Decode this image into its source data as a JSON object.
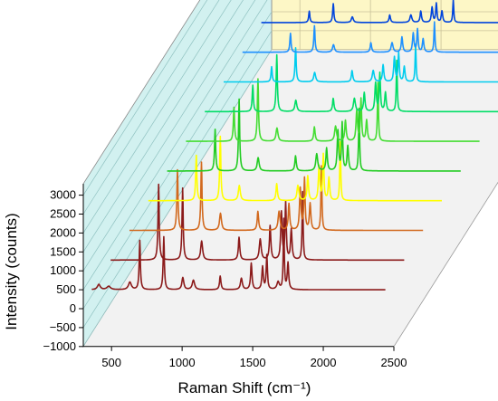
{
  "chart_data": {
    "type": "line",
    "subtype": "waterfall-3d",
    "xlabel": "Raman Shift (cm⁻¹)",
    "ylabel": "Intensity (counts)",
    "xlim": [
      300,
      2500
    ],
    "ylim": [
      -1000,
      3300
    ],
    "x_ticks": [
      500,
      1000,
      1500,
      2000,
      2500
    ],
    "y_ticks": [
      -1000,
      -500,
      0,
      500,
      1000,
      1500,
      2000,
      2500,
      3000
    ],
    "grid": true,
    "legend": "none",
    "colors": {
      "back_wall": "#fdf7c6",
      "side_wall": "#d2f1f0",
      "floor_face": "#f2f2f2",
      "highlight": "#f8d6f2"
    },
    "series": [
      {
        "color": "#8b1a1a",
        "baseline": 500,
        "peaks": [
          [
            410,
            140,
            12
          ],
          [
            480,
            90,
            15
          ],
          [
            630,
            200,
            12
          ],
          [
            700,
            1300,
            5
          ],
          [
            870,
            1400,
            5
          ],
          [
            1005,
            320,
            8
          ],
          [
            1080,
            250,
            10
          ],
          [
            1270,
            360,
            6
          ],
          [
            1420,
            300,
            8
          ],
          [
            1490,
            700,
            6
          ],
          [
            1570,
            600,
            6
          ],
          [
            1600,
            900,
            5
          ],
          [
            1680,
            200,
            10
          ],
          [
            1720,
            1850,
            4
          ],
          [
            1750,
            700,
            6
          ]
        ]
      },
      {
        "color": "#8b1a1a",
        "baseline": 500,
        "peaks": [
          [
            700,
            2000,
            5
          ],
          [
            870,
            1900,
            5
          ],
          [
            1005,
            500,
            8
          ],
          [
            1270,
            600,
            6
          ],
          [
            1420,
            550,
            8
          ],
          [
            1490,
            900,
            6
          ],
          [
            1570,
            1250,
            6
          ],
          [
            1600,
            1500,
            5
          ],
          [
            1640,
            800,
            6
          ],
          [
            1720,
            1800,
            4
          ]
        ]
      },
      {
        "color": "#d2691e",
        "baseline": 500,
        "peaks": [
          [
            700,
            1600,
            5
          ],
          [
            870,
            1800,
            5
          ],
          [
            1005,
            450,
            8
          ],
          [
            1270,
            500,
            6
          ],
          [
            1420,
            500,
            8
          ],
          [
            1490,
            700,
            6
          ],
          [
            1570,
            1100,
            6
          ],
          [
            1600,
            1350,
            5
          ],
          [
            1640,
            700,
            6
          ],
          [
            1720,
            1700,
            4
          ]
        ]
      },
      {
        "color": "#ffff00",
        "baseline": 500,
        "peaks": [
          [
            700,
            1200,
            5
          ],
          [
            870,
            1700,
            5
          ],
          [
            1005,
            400,
            8
          ],
          [
            1270,
            450,
            6
          ],
          [
            1420,
            400,
            8
          ],
          [
            1490,
            650,
            6
          ],
          [
            1570,
            900,
            6
          ],
          [
            1600,
            1200,
            5
          ],
          [
            1640,
            600,
            6
          ],
          [
            1720,
            1550,
            4
          ]
        ]
      },
      {
        "color": "#22cc22",
        "baseline": 500,
        "peaks": [
          [
            700,
            1100,
            5
          ],
          [
            870,
            1900,
            5
          ],
          [
            1005,
            350,
            8
          ],
          [
            1270,
            400,
            6
          ],
          [
            1420,
            450,
            8
          ],
          [
            1490,
            600,
            6
          ],
          [
            1570,
            1050,
            6
          ],
          [
            1600,
            1250,
            5
          ],
          [
            1640,
            650,
            6
          ],
          [
            1720,
            1650,
            4
          ]
        ]
      },
      {
        "color": "#44dd33",
        "baseline": 500,
        "peaks": [
          [
            700,
            900,
            5
          ],
          [
            870,
            1650,
            5
          ],
          [
            1005,
            350,
            8
          ],
          [
            1270,
            380,
            6
          ],
          [
            1420,
            400,
            8
          ],
          [
            1490,
            550,
            6
          ],
          [
            1570,
            800,
            6
          ],
          [
            1600,
            1100,
            5
          ],
          [
            1640,
            550,
            6
          ],
          [
            1720,
            1550,
            4
          ]
        ]
      },
      {
        "color": "#00dd66",
        "baseline": 500,
        "peaks": [
          [
            700,
            700,
            5
          ],
          [
            870,
            1500,
            5
          ],
          [
            1005,
            300,
            8
          ],
          [
            1270,
            350,
            6
          ],
          [
            1420,
            350,
            8
          ],
          [
            1490,
            500,
            6
          ],
          [
            1570,
            750,
            6
          ],
          [
            1600,
            1000,
            5
          ],
          [
            1640,
            500,
            6
          ],
          [
            1720,
            1350,
            4
          ]
        ]
      },
      {
        "color": "#00ccee",
        "baseline": 500,
        "peaks": [
          [
            700,
            400,
            5
          ],
          [
            870,
            900,
            5
          ],
          [
            1005,
            250,
            8
          ],
          [
            1270,
            300,
            6
          ],
          [
            1420,
            300,
            8
          ],
          [
            1490,
            450,
            6
          ],
          [
            1570,
            650,
            6
          ],
          [
            1600,
            750,
            5
          ],
          [
            1640,
            400,
            6
          ],
          [
            1720,
            1000,
            4
          ]
        ]
      },
      {
        "color": "#1e90ff",
        "baseline": 500,
        "peaks": [
          [
            700,
            500,
            5
          ],
          [
            870,
            700,
            5
          ],
          [
            1005,
            200,
            8
          ],
          [
            1270,
            250,
            6
          ],
          [
            1420,
            250,
            8
          ],
          [
            1490,
            400,
            6
          ],
          [
            1570,
            500,
            6
          ],
          [
            1600,
            600,
            5
          ],
          [
            1640,
            350,
            6
          ],
          [
            1720,
            800,
            4
          ]
        ]
      },
      {
        "color": "#0044dd",
        "baseline": 500,
        "peaks": [
          [
            700,
            300,
            5
          ],
          [
            870,
            500,
            5
          ],
          [
            1005,
            150,
            8
          ],
          [
            1270,
            200,
            6
          ],
          [
            1420,
            200,
            8
          ],
          [
            1490,
            300,
            6
          ],
          [
            1570,
            400,
            6
          ],
          [
            1600,
            500,
            5
          ],
          [
            1640,
            300,
            6
          ],
          [
            1720,
            600,
            4
          ]
        ]
      },
      {
        "color": "#0000cc",
        "baseline": 500,
        "peaks": [
          [
            700,
            900,
            5
          ],
          [
            870,
            1300,
            5
          ],
          [
            1005,
            300,
            8
          ],
          [
            1270,
            500,
            6
          ],
          [
            1420,
            400,
            8
          ],
          [
            1490,
            600,
            6
          ],
          [
            1570,
            1100,
            6
          ],
          [
            1600,
            1400,
            5
          ],
          [
            1640,
            800,
            6
          ],
          [
            1720,
            1600,
            4
          ]
        ]
      }
    ]
  }
}
